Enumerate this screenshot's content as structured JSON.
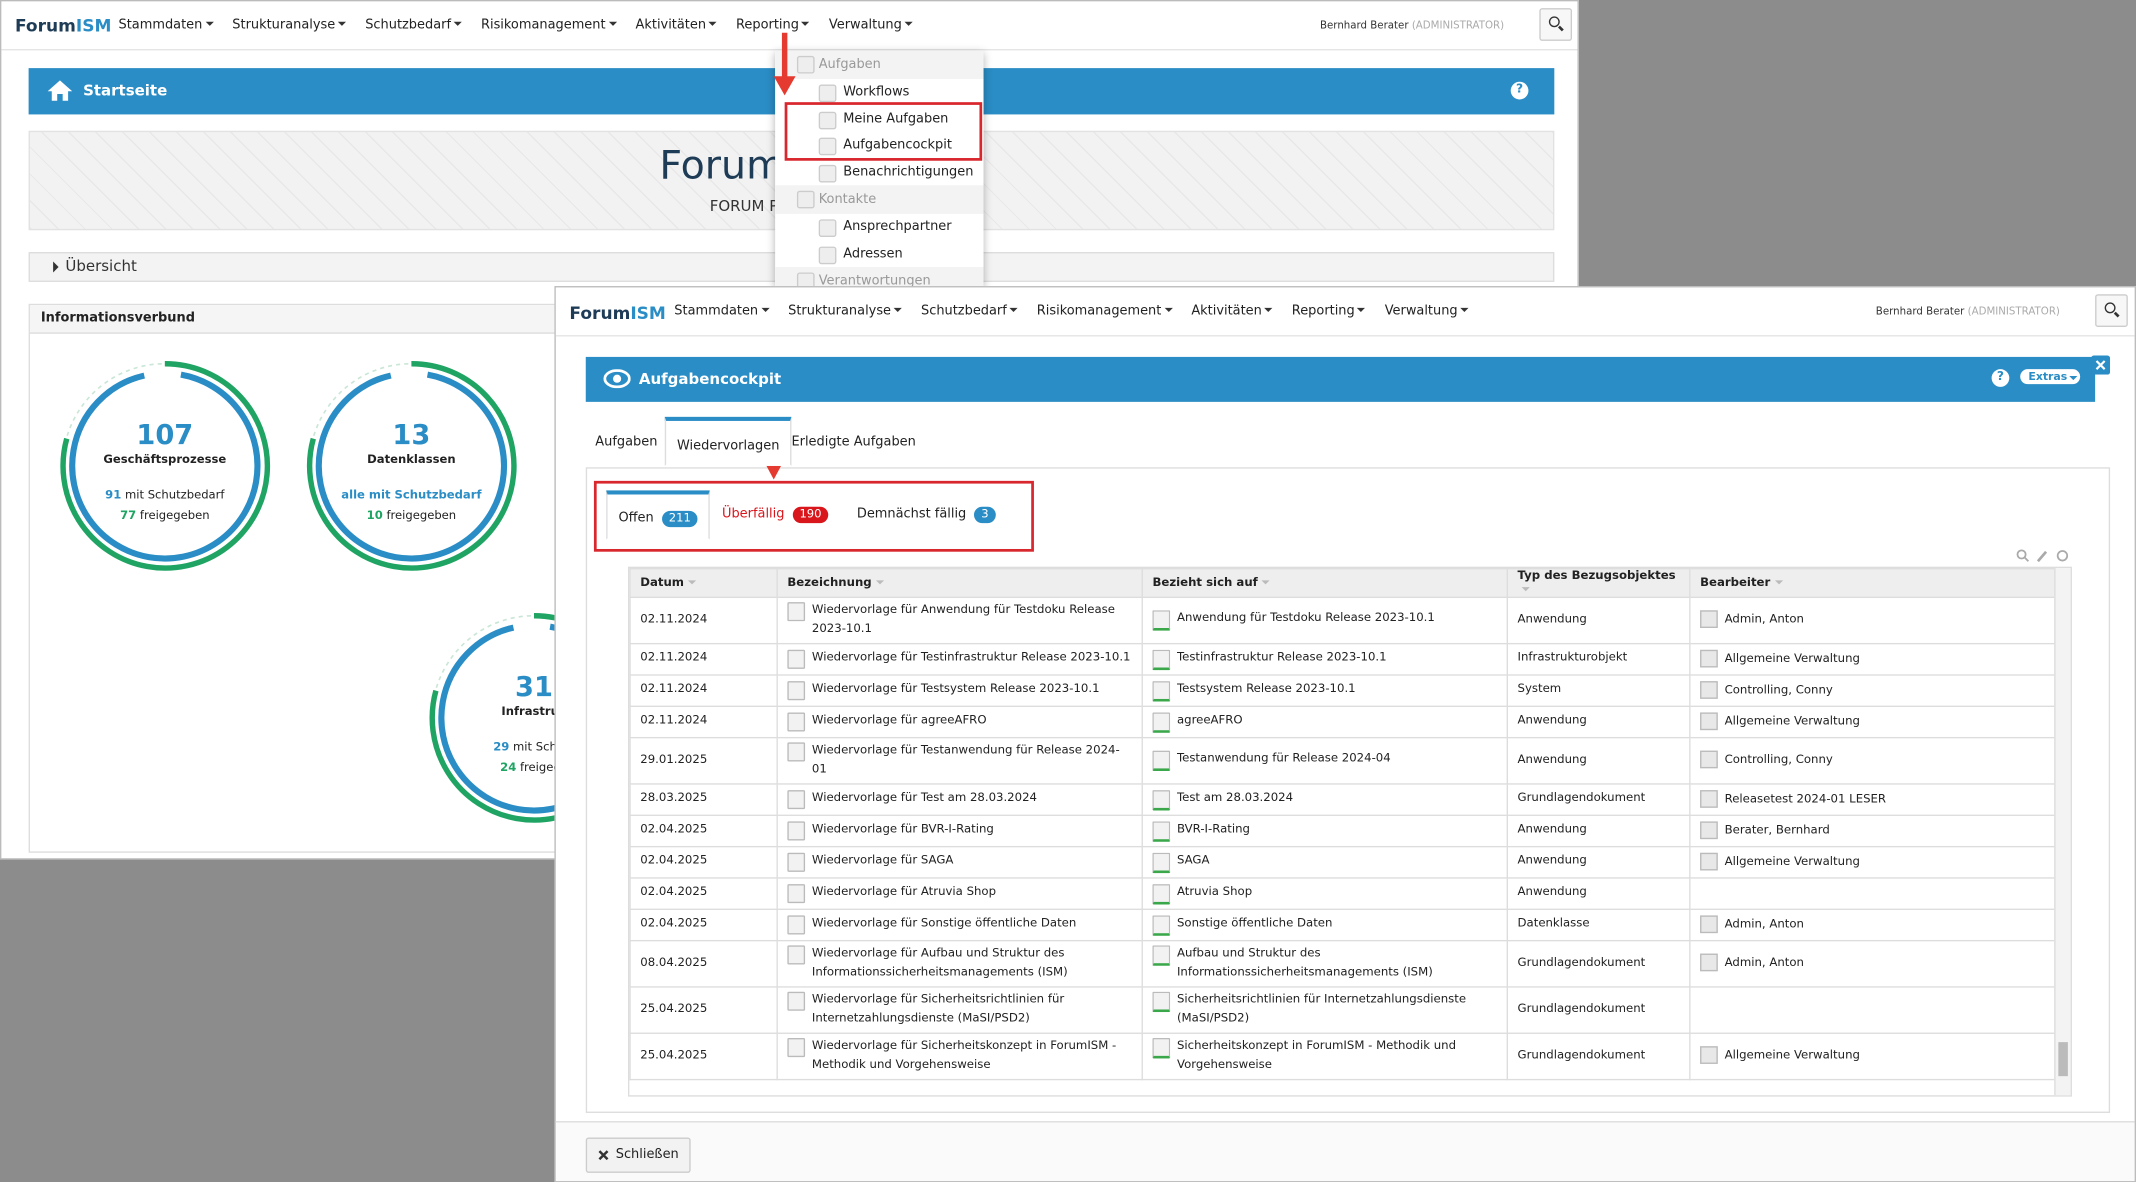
{
  "back": {
    "brand": [
      "Forum",
      "ISM"
    ],
    "nav": [
      "Stammdaten",
      "Strukturanalyse",
      "Schutzbedarf",
      "Risikomanagement",
      "Aktivitäten",
      "Reporting",
      "Verwaltung"
    ],
    "user": "Bernhard Berater",
    "role": "(ADMINISTRATOR)",
    "dropdown": [
      {
        "group": "Aufgaben",
        "items": [
          "Workflows",
          "Meine Aufgaben",
          "Aufgabencockpit",
          "Benachrichtigungen"
        ]
      },
      {
        "group": "Kontakte",
        "items": [
          "Ansprechpartner",
          "Adressen"
        ]
      },
      {
        "group": "Verantwortungen",
        "items": []
      }
    ],
    "page_title": "Startseite",
    "help": "?",
    "banner_title": "Forum",
    "banner_subtitle": "FORUM P",
    "overview": "Übersicht",
    "panel_title": "Informationsverbund",
    "stats": [
      {
        "number": "107",
        "label": "Geschäftsprozesse",
        "line1_value": "91",
        "line1_text": "mit Schutzbedarf",
        "line2_value": "77",
        "line2_text": "freigegeben"
      },
      {
        "number": "13",
        "label": "Datenklassen",
        "line1_value": "alle mit Schutzbedarf",
        "line1_text": null,
        "line2_value": "10",
        "line2_text": "freigegeben"
      },
      {
        "number": "31",
        "label": "Infrastruk",
        "line1_value": "29",
        "line1_text": "mit Schutz",
        "line2_value": "24",
        "line2_text": "freigege"
      }
    ]
  },
  "front": {
    "brand": [
      "Forum",
      "ISM"
    ],
    "nav": [
      "Stammdaten",
      "Strukturanalyse",
      "Schutzbedarf",
      "Risikomanagement",
      "Aktivitäten",
      "Reporting",
      "Verwaltung"
    ],
    "user": "Bernhard Berater",
    "role": "(ADMINISTRATOR)",
    "page_title": "Aufgabencockpit",
    "help": "?",
    "extras": "Extras",
    "tabs": [
      "Aufgaben",
      "Wiedervorlagen",
      "Erledigte Aufgaben"
    ],
    "subtabs": [
      {
        "label": "Offen",
        "count": "211"
      },
      {
        "label": "Überfällig",
        "count": "190"
      },
      {
        "label": "Demnächst fällig",
        "count": "3"
      }
    ],
    "table": {
      "columns": [
        "Datum",
        "Bezeichnung",
        "Bezieht sich auf",
        "Typ des Bezugsobjektes",
        "Bearbeiter"
      ],
      "rows": [
        [
          "02.11.2024",
          "Wiedervorlage für Anwendung für Testdoku Release 2023-10.1",
          "Anwendung für Testdoku Release 2023-10.1",
          "Anwendung",
          "Admin, Anton"
        ],
        [
          "02.11.2024",
          "Wiedervorlage für Testinfrastruktur Release 2023-10.1",
          "Testinfrastruktur Release 2023-10.1",
          "Infrastrukturobjekt",
          "Allgemeine Verwaltung"
        ],
        [
          "02.11.2024",
          "Wiedervorlage für Testsystem Release 2023-10.1",
          "Testsystem Release 2023-10.1",
          "System",
          "Controlling, Conny"
        ],
        [
          "02.11.2024",
          "Wiedervorlage für agreeAFRO",
          "agreeAFRO",
          "Anwendung",
          "Allgemeine Verwaltung"
        ],
        [
          "29.01.2025",
          "Wiedervorlage für Testanwendung für Release 2024-01",
          "Testanwendung für Release 2024-04",
          "Anwendung",
          "Controlling, Conny"
        ],
        [
          "28.03.2025",
          "Wiedervorlage für Test am 28.03.2024",
          "Test am 28.03.2024",
          "Grundlagendokument",
          "Releasetest 2024-01 LESER"
        ],
        [
          "02.04.2025",
          "Wiedervorlage für BVR-I-Rating",
          "BVR-I-Rating",
          "Anwendung",
          "Berater, Bernhard"
        ],
        [
          "02.04.2025",
          "Wiedervorlage für SAGA",
          "SAGA",
          "Anwendung",
          "Allgemeine Verwaltung"
        ],
        [
          "02.04.2025",
          "Wiedervorlage für Atruvia Shop",
          "Atruvia Shop",
          "Anwendung",
          null
        ],
        [
          "02.04.2025",
          "Wiedervorlage für Sonstige öffentliche Daten",
          "Sonstige öffentliche Daten",
          "Datenklasse",
          "Admin, Anton"
        ],
        [
          "08.04.2025",
          "Wiedervorlage für Aufbau und Struktur des Informationssicherheitsmanagements (ISM)",
          "Aufbau und Struktur des Informationssicherheitsmanagements (ISM)",
          "Grundlagendokument",
          "Admin, Anton"
        ],
        [
          "25.04.2025",
          "Wiedervorlage für Sicherheitsrichtlinien für Internetzahlungsdienste (MaSI/PSD2)",
          "Sicherheitsrichtlinien für Internetzahlungsdienste (MaSI/PSD2)",
          "Grundlagendokument",
          null
        ],
        [
          "25.04.2025",
          "Wiedervorlage für Sicherheitskonzept in ForumISM - Methodik und Vorgehensweise",
          "Sicherheitskonzept in ForumISM - Methodik und Vorgehensweise",
          "Grundlagendokument",
          "Allgemeine Verwaltung"
        ]
      ]
    },
    "close": "Schließen"
  }
}
